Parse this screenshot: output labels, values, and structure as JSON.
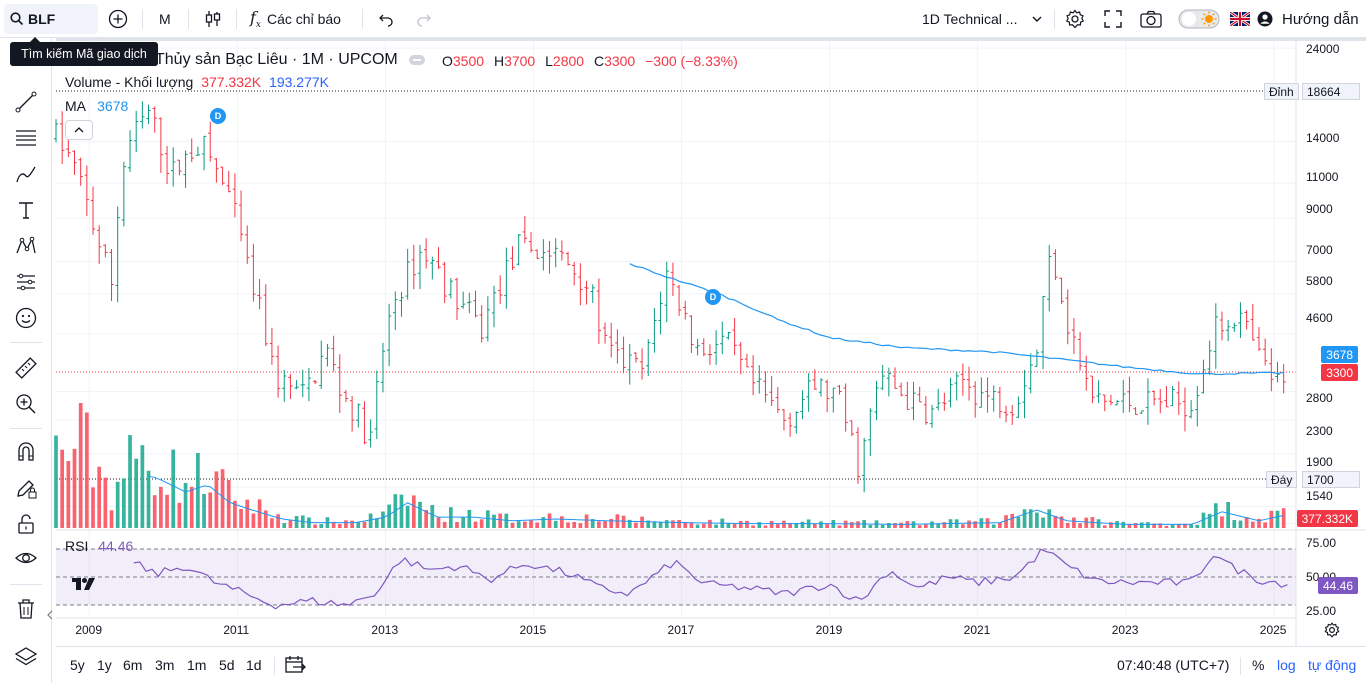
{
  "toolbar": {
    "symbol": "BLF",
    "interval": "M",
    "indicators_label": "Các chỉ báo",
    "layout_name": "1D Technical ...",
    "help_label": "Hướng dẫn"
  },
  "tooltip": "Tìm kiếm Mã giao dịch",
  "legend": {
    "title": "Thủy sản Bạc Liêu · 1M · UPCOM",
    "o_label": "O",
    "o_value": "3500",
    "h_label": "H",
    "h_value": "3700",
    "l_label": "L",
    "l_value": "2800",
    "c_label": "C",
    "c_value": "3300",
    "change": "−300 (−8.33%)",
    "volume_label": "Volume - Khối lượng",
    "volume_value": "377.332K",
    "volume_ma_value": "193.277K",
    "ma_label": "MA",
    "ma_value": "3678",
    "rsi_label": "RSI",
    "rsi_value": "44.46"
  },
  "price_axis": {
    "ticks": [
      "24000",
      "14000",
      "11000",
      "9000",
      "7000",
      "5800",
      "4600",
      "3300",
      "2800",
      "2300",
      "1900",
      "1700",
      "1540"
    ],
    "peak_label": "Đỉnh",
    "peak_value": "18664",
    "trough_label": "Đáy",
    "trough_value": "1700",
    "ma_tag": "3678",
    "close_tag": "3300",
    "volume_tag": "377.332K"
  },
  "rsi_axis": {
    "ticks": [
      "75.00",
      "50.00",
      "25.00"
    ],
    "tag": "44.46"
  },
  "time_axis": {
    "labels": [
      "2009",
      "2011",
      "2013",
      "2015",
      "2017",
      "2019",
      "2021",
      "2023",
      "2025"
    ]
  },
  "bottom": {
    "ranges": [
      "5y",
      "1y",
      "6m",
      "3m",
      "1m",
      "5d",
      "1d"
    ],
    "clock": "07:40:48 (UTC+7)",
    "percent": "%",
    "log": "log",
    "auto": "tự động"
  },
  "colors": {
    "up": "#089981",
    "down": "#f23645",
    "ma": "#2196f3",
    "rsi": "#7e57c2",
    "accent": "#2962ff"
  },
  "chart_data": {
    "type": "candlestick",
    "title": "Thủy sản Bạc Liêu · 1M · UPCOM",
    "interval": "1M",
    "y_scale": "log",
    "x_range": [
      2008.55,
      2025.3
    ],
    "ylim": [
      1500,
      25000
    ],
    "grid": true,
    "price_anchors": [
      [
        2008.55,
        14500
      ],
      [
        2008.8,
        12000
      ],
      [
        2009.1,
        8000
      ],
      [
        2009.3,
        6200
      ],
      [
        2009.5,
        13500
      ],
      [
        2009.8,
        16500
      ],
      [
        2010.1,
        11500
      ],
      [
        2010.5,
        14000
      ],
      [
        2010.9,
        10000
      ],
      [
        2011.15,
        6500
      ],
      [
        2011.5,
        3600
      ],
      [
        2011.9,
        3200
      ],
      [
        2012.2,
        4200
      ],
      [
        2012.4,
        3300
      ],
      [
        2012.8,
        2500
      ],
      [
        2013.1,
        5500
      ],
      [
        2013.5,
        7500
      ],
      [
        2013.9,
        5800
      ],
      [
        2014.3,
        4700
      ],
      [
        2014.8,
        7600
      ],
      [
        2015.3,
        7300
      ],
      [
        2015.7,
        6300
      ],
      [
        2016.0,
        4100
      ],
      [
        2016.5,
        3700
      ],
      [
        2016.8,
        6500
      ],
      [
        2017.2,
        4200
      ],
      [
        2017.6,
        4400
      ],
      [
        2017.9,
        3500
      ],
      [
        2018.4,
        2800
      ],
      [
        2018.8,
        3400
      ],
      [
        2019.1,
        3200
      ],
      [
        2019.4,
        2100
      ],
      [
        2019.7,
        3600
      ],
      [
        2020.1,
        3100
      ],
      [
        2020.4,
        2900
      ],
      [
        2020.8,
        3500
      ],
      [
        2021.1,
        3200
      ],
      [
        2021.5,
        3100
      ],
      [
        2021.8,
        4200
      ],
      [
        2022.0,
        7500
      ],
      [
        2022.2,
        5000
      ],
      [
        2022.5,
        3200
      ],
      [
        2022.7,
        3100
      ],
      [
        2023.9,
        3100
      ],
      [
        2024.2,
        4700
      ],
      [
        2024.5,
        5200
      ],
      [
        2024.8,
        4000
      ],
      [
        2025.0,
        3500
      ],
      [
        2025.2,
        3300
      ]
    ],
    "ma_anchors": [
      [
        2016.3,
        6900
      ],
      [
        2016.8,
        6400
      ],
      [
        2017.5,
        5800
      ],
      [
        2018.3,
        5000
      ],
      [
        2019.0,
        4500
      ],
      [
        2020.0,
        4250
      ],
      [
        2021.2,
        4150
      ],
      [
        2022.0,
        4000
      ],
      [
        2023.0,
        3800
      ],
      [
        2024.0,
        3650
      ],
      [
        2025.2,
        3678
      ]
    ],
    "rsi_anchors": [
      [
        2009.6,
        60
      ],
      [
        2009.9,
        52
      ],
      [
        2010.3,
        58
      ],
      [
        2010.7,
        46
      ],
      [
        2011.0,
        40
      ],
      [
        2011.5,
        30
      ],
      [
        2012.0,
        33
      ],
      [
        2012.5,
        30
      ],
      [
        2012.9,
        40
      ],
      [
        2013.2,
        63
      ],
      [
        2013.6,
        55
      ],
      [
        2014.0,
        58
      ],
      [
        2014.4,
        48
      ],
      [
        2014.9,
        60
      ],
      [
        2015.5,
        52
      ],
      [
        2015.9,
        42
      ],
      [
        2016.3,
        38
      ],
      [
        2016.9,
        61
      ],
      [
        2017.3,
        45
      ],
      [
        2017.9,
        42
      ],
      [
        2018.4,
        38
      ],
      [
        2019.0,
        45
      ],
      [
        2019.4,
        32
      ],
      [
        2019.8,
        55
      ],
      [
        2020.2,
        42
      ],
      [
        2020.6,
        50
      ],
      [
        2021.0,
        46
      ],
      [
        2021.5,
        50
      ],
      [
        2021.9,
        70
      ],
      [
        2022.2,
        58
      ],
      [
        2022.6,
        47
      ],
      [
        2023.0,
        46
      ],
      [
        2023.9,
        46
      ],
      [
        2024.2,
        68
      ],
      [
        2024.4,
        58
      ],
      [
        2024.8,
        48
      ],
      [
        2025.2,
        45
      ]
    ],
    "volume_anchors": [
      [
        2008.6,
        1.6
      ],
      [
        2008.9,
        1.9
      ],
      [
        2009.3,
        0.8
      ],
      [
        2009.6,
        1.5
      ],
      [
        2009.9,
        1.4
      ],
      [
        2010.3,
        1.0
      ],
      [
        2010.6,
        1.2
      ],
      [
        2010.9,
        0.7
      ],
      [
        2011.2,
        0.5
      ],
      [
        2011.6,
        0.25
      ],
      [
        2012.0,
        0.15
      ],
      [
        2012.6,
        0.15
      ],
      [
        2013.0,
        0.3
      ],
      [
        2013.3,
        0.7
      ],
      [
        2013.7,
        0.3
      ],
      [
        2014.2,
        0.3
      ],
      [
        2014.7,
        0.2
      ],
      [
        2015.3,
        0.25
      ],
      [
        2016.0,
        0.2
      ],
      [
        2017.0,
        0.15
      ],
      [
        2018.0,
        0.12
      ],
      [
        2019.0,
        0.12
      ],
      [
        2020.0,
        0.1
      ],
      [
        2021.3,
        0.15
      ],
      [
        2021.8,
        0.5
      ],
      [
        2022.2,
        0.2
      ],
      [
        2023.0,
        0.1
      ],
      [
        2023.9,
        0.1
      ],
      [
        2024.3,
        0.45
      ],
      [
        2024.8,
        0.2
      ],
      [
        2025.2,
        0.38
      ]
    ],
    "rsi_range": [
      20,
      80
    ],
    "rsi_levels": [
      70,
      50,
      30
    ],
    "volume_max": 2.6
  }
}
